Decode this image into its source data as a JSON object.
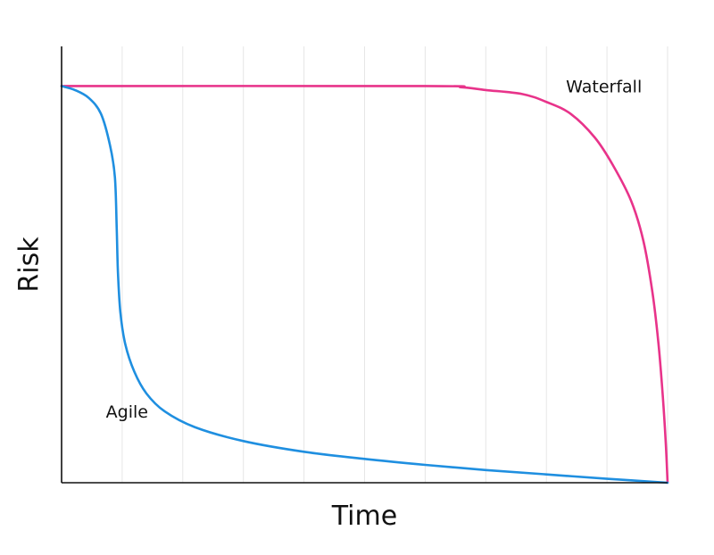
{
  "chart_data": {
    "type": "line",
    "title": "",
    "xlabel": "Time",
    "ylabel": "Risk",
    "xlim": [
      0,
      10
    ],
    "ylim": [
      0,
      1.1
    ],
    "grid": {
      "vertical": true,
      "horizontal": false,
      "x_positions": [
        1,
        2,
        3,
        4,
        5,
        6,
        7,
        8,
        9,
        10
      ]
    },
    "tick_labels_shown": false,
    "series": [
      {
        "name": "Waterfall",
        "color": "#e8338a",
        "points": [
          [
            0.0,
            1.0
          ],
          [
            6.0,
            1.0
          ],
          [
            6.6,
            0.997
          ],
          [
            7.0,
            0.99
          ],
          [
            7.6,
            0.98
          ],
          [
            8.0,
            0.96
          ],
          [
            8.4,
            0.93
          ],
          [
            8.8,
            0.87
          ],
          [
            9.1,
            0.8
          ],
          [
            9.4,
            0.71
          ],
          [
            9.6,
            0.61
          ],
          [
            9.75,
            0.48
          ],
          [
            9.85,
            0.35
          ],
          [
            9.92,
            0.22
          ],
          [
            9.97,
            0.1
          ],
          [
            10.0,
            0.0
          ]
        ],
        "label_anchor": [
          8.95,
          1.0
        ]
      },
      {
        "name": "Agile",
        "color": "#1f8fe0",
        "points": [
          [
            0.0,
            1.0
          ],
          [
            0.22,
            0.99
          ],
          [
            0.45,
            0.97
          ],
          [
            0.65,
            0.93
          ],
          [
            0.8,
            0.85
          ],
          [
            0.88,
            0.77
          ],
          [
            0.91,
            0.64
          ],
          [
            0.93,
            0.53
          ],
          [
            0.97,
            0.43
          ],
          [
            1.05,
            0.35
          ],
          [
            1.2,
            0.28
          ],
          [
            1.4,
            0.225
          ],
          [
            1.7,
            0.18
          ],
          [
            2.2,
            0.14
          ],
          [
            3.0,
            0.105
          ],
          [
            4.0,
            0.078
          ],
          [
            5.0,
            0.06
          ],
          [
            6.0,
            0.045
          ],
          [
            7.0,
            0.032
          ],
          [
            8.0,
            0.021
          ],
          [
            9.0,
            0.01
          ],
          [
            10.0,
            0.0
          ]
        ],
        "label_anchor": [
          1.08,
          0.18
        ]
      }
    ]
  }
}
